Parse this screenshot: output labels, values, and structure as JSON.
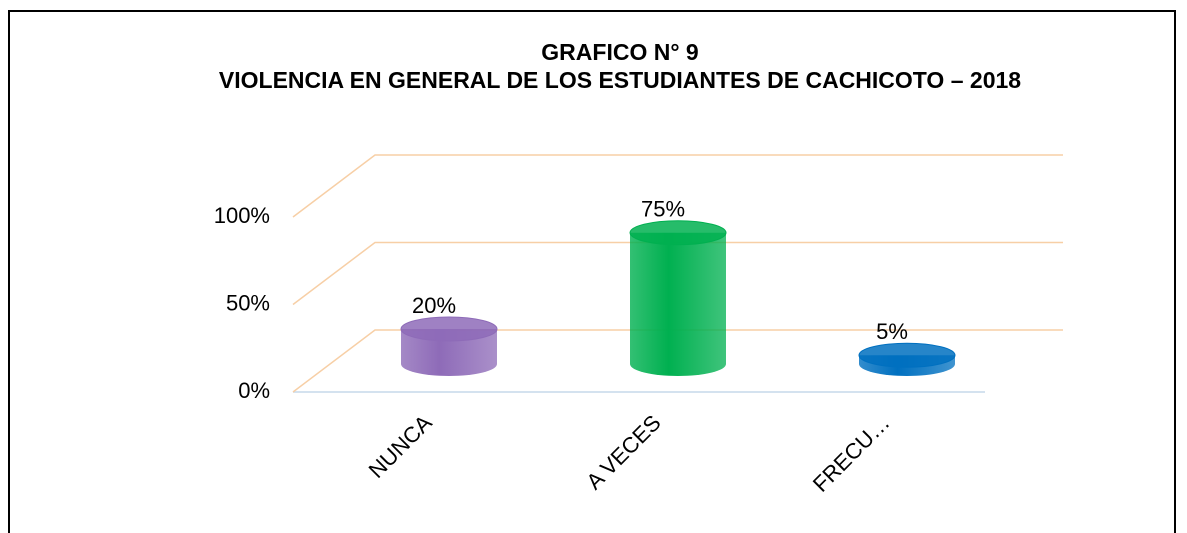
{
  "chart_data": {
    "type": "cylinder",
    "title": "GRAFICO N° 9",
    "subtitle": "VIOLENCIA EN GENERAL DE LOS ESTUDIANTES DE CACHICOTO – 2018",
    "categories": [
      "NUNCA",
      "A VECES",
      "FRECU…"
    ],
    "values": [
      20,
      75,
      5
    ],
    "value_labels": [
      "20%",
      "75%",
      "5%"
    ],
    "colors": [
      "#8e6bb8",
      "#00b050",
      "#0070c0"
    ],
    "ylim": [
      0,
      100
    ],
    "yticks": [
      {
        "value": 0,
        "label": "0%"
      },
      {
        "value": 50,
        "label": "50%"
      },
      {
        "value": 100,
        "label": "100%"
      }
    ],
    "grid": true
  }
}
